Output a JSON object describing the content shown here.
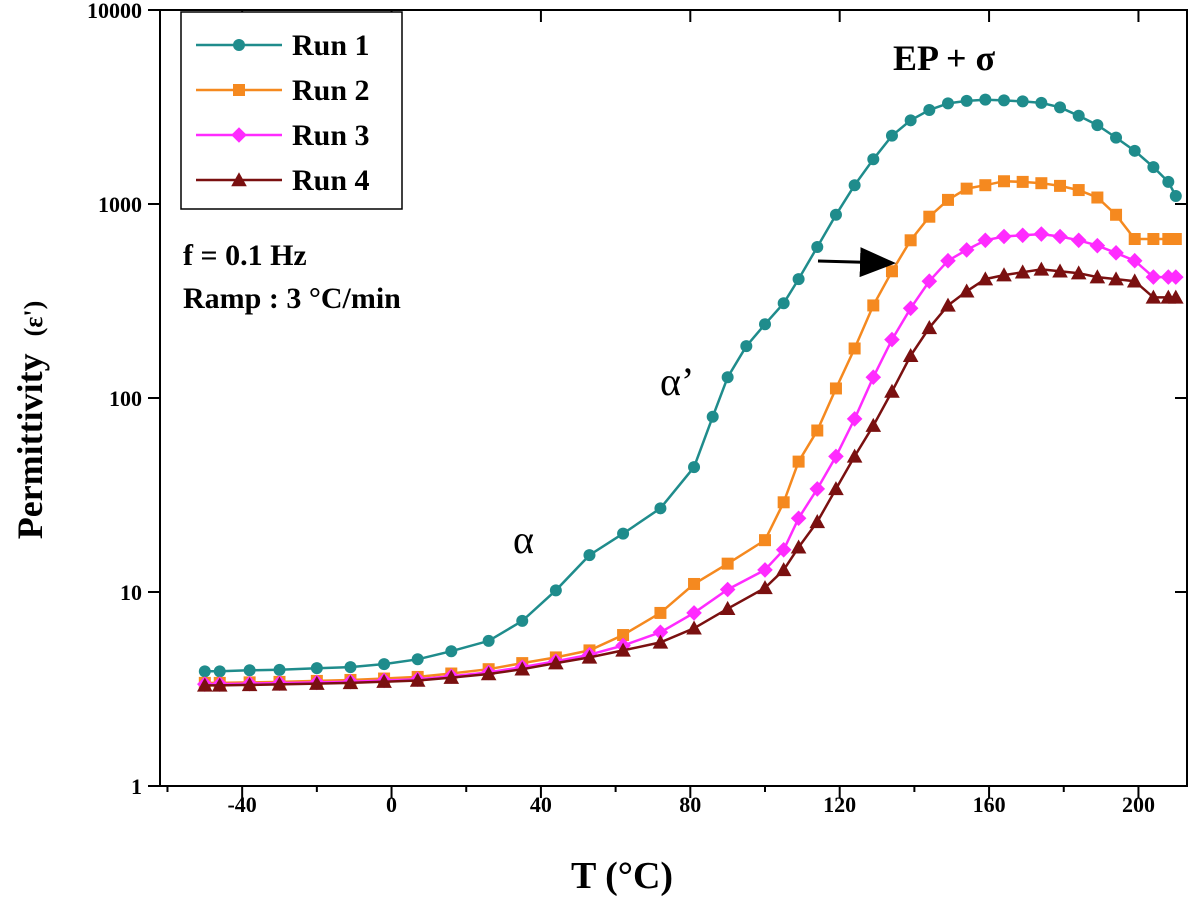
{
  "chart_data": {
    "type": "line",
    "xlabel": "T (°C)",
    "ylabel": "Permittivity",
    "ylabel_suffix": "(ε')",
    "xlim": [
      -62,
      213
    ],
    "ylim": [
      1,
      10000
    ],
    "y_scale": "log",
    "x_ticks": [
      -40,
      0,
      40,
      80,
      120,
      160,
      200
    ],
    "x_tick_labels": [
      "-40",
      "0",
      "40",
      "80",
      "120",
      "160",
      "200"
    ],
    "y_ticks": [
      1,
      10,
      100,
      1000,
      10000
    ],
    "y_tick_labels": [
      "1",
      "10",
      "100",
      "1000",
      "10000"
    ],
    "grid": false,
    "legend_position": "top-left",
    "series": [
      {
        "name": "Run 1",
        "color": "#1f8c8c",
        "marker": "circle",
        "x": [
          -50,
          -46,
          -38,
          -30,
          -20,
          -11,
          -2,
          7,
          16,
          26,
          35,
          44,
          53,
          62,
          72,
          81,
          86,
          90,
          95,
          100,
          105,
          109,
          114,
          119,
          124,
          129,
          134,
          139,
          144,
          149,
          154,
          159,
          164,
          169,
          174,
          179,
          184,
          189,
          194,
          199,
          204,
          208,
          210
        ],
        "y": [
          3.9,
          3.9,
          3.95,
          3.97,
          4.05,
          4.1,
          4.25,
          4.5,
          4.95,
          5.6,
          7.1,
          10.2,
          15.5,
          20,
          27,
          44,
          80,
          128,
          185,
          240,
          308,
          410,
          600,
          880,
          1250,
          1700,
          2250,
          2700,
          3050,
          3300,
          3400,
          3450,
          3420,
          3380,
          3320,
          3150,
          2850,
          2550,
          2200,
          1880,
          1550,
          1300,
          1100
        ]
      },
      {
        "name": "Run 2",
        "color": "#f5891f",
        "marker": "square",
        "x": [
          -50,
          -46,
          -38,
          -30,
          -20,
          -11,
          -2,
          7,
          16,
          26,
          35,
          44,
          53,
          62,
          72,
          81,
          90,
          100,
          105,
          109,
          114,
          119,
          124,
          129,
          134,
          139,
          144,
          149,
          154,
          159,
          164,
          169,
          174,
          179,
          184,
          189,
          194,
          199,
          204,
          208,
          210
        ],
        "y": [
          3.4,
          3.4,
          3.42,
          3.44,
          3.48,
          3.52,
          3.58,
          3.65,
          3.8,
          4.0,
          4.3,
          4.6,
          5.0,
          6.0,
          7.8,
          11,
          14,
          18.5,
          29,
          47,
          68,
          112,
          180,
          300,
          450,
          650,
          860,
          1050,
          1200,
          1250,
          1310,
          1300,
          1280,
          1240,
          1180,
          1080,
          880,
          660,
          660,
          660,
          660
        ]
      },
      {
        "name": "Run 3",
        "color": "#ff2bff",
        "marker": "diamond",
        "x": [
          -50,
          -46,
          -38,
          -30,
          -20,
          -11,
          -2,
          7,
          16,
          26,
          35,
          44,
          53,
          62,
          72,
          81,
          90,
          100,
          105,
          109,
          114,
          119,
          124,
          129,
          134,
          139,
          144,
          149,
          154,
          159,
          164,
          169,
          174,
          179,
          184,
          189,
          194,
          199,
          204,
          208,
          210
        ],
        "y": [
          3.35,
          3.35,
          3.37,
          3.39,
          3.42,
          3.45,
          3.5,
          3.55,
          3.68,
          3.85,
          4.1,
          4.4,
          4.75,
          5.3,
          6.2,
          7.8,
          10.3,
          13,
          16.5,
          24,
          34,
          50,
          78,
          128,
          200,
          290,
          400,
          510,
          580,
          650,
          680,
          690,
          700,
          680,
          650,
          610,
          560,
          510,
          420,
          420,
          420
        ]
      },
      {
        "name": "Run 4",
        "color": "#7a1010",
        "marker": "triangle",
        "x": [
          -50,
          -46,
          -38,
          -30,
          -20,
          -11,
          -2,
          7,
          16,
          26,
          35,
          44,
          53,
          62,
          72,
          81,
          90,
          100,
          105,
          109,
          114,
          119,
          124,
          129,
          134,
          139,
          144,
          149,
          154,
          159,
          164,
          169,
          174,
          179,
          184,
          189,
          194,
          199,
          204,
          208,
          210
        ],
        "y": [
          3.3,
          3.3,
          3.32,
          3.34,
          3.37,
          3.4,
          3.45,
          3.5,
          3.62,
          3.78,
          4.0,
          4.3,
          4.6,
          5.0,
          5.5,
          6.5,
          8.2,
          10.5,
          13,
          17,
          23,
          34,
          50,
          72,
          108,
          165,
          230,
          300,
          355,
          410,
          430,
          445,
          460,
          450,
          440,
          420,
          410,
          400,
          330,
          330,
          330
        ]
      }
    ],
    "annotations": [
      {
        "text": "EP + σ",
        "x": 163,
        "y": 7000
      },
      {
        "text": "α",
        "x": 34,
        "y": 15
      },
      {
        "text": "α’",
        "x": 60,
        "y": 150
      }
    ],
    "info_lines": [
      "f = 0.1 Hz",
      "Ramp : 3 °C/min"
    ]
  }
}
